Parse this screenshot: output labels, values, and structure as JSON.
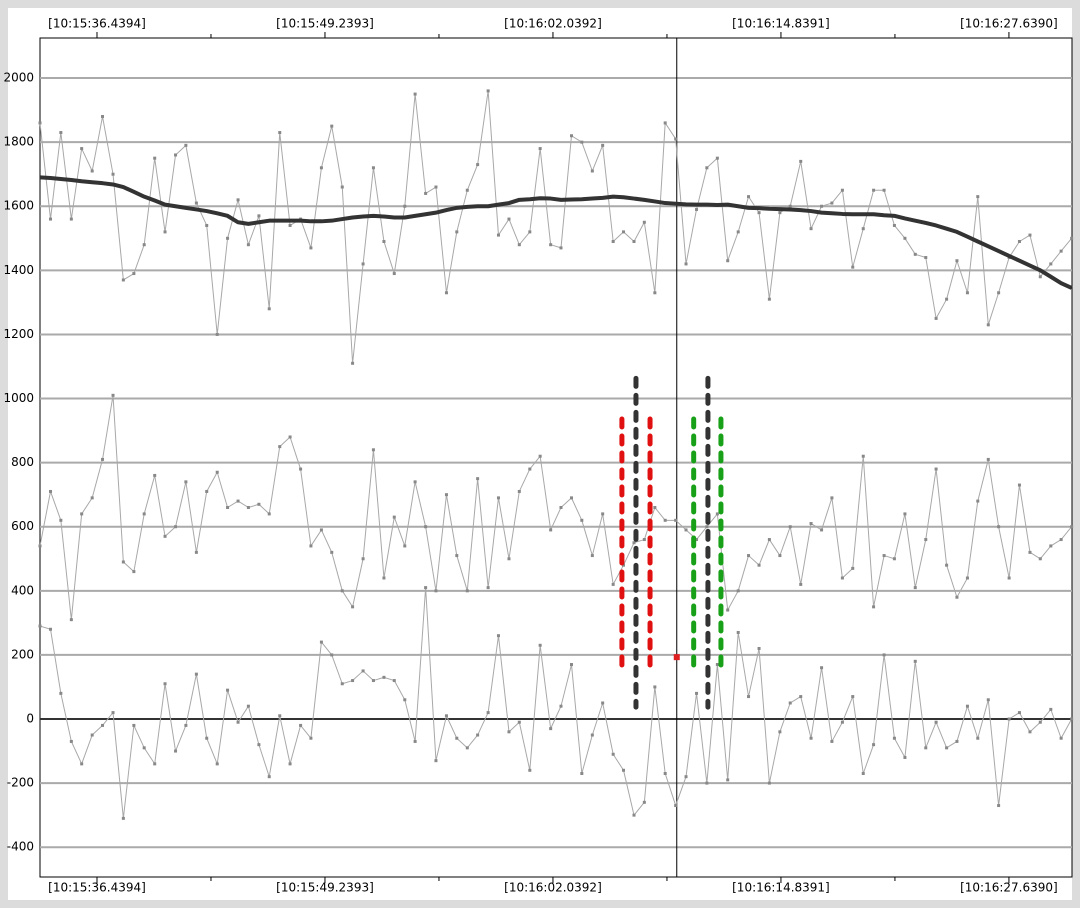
{
  "chart_data": {
    "type": "line",
    "xlim": [
      33.24,
      91.18
    ],
    "ylim": [
      -493,
      2125
    ],
    "xticks": [
      {
        "value": 36.4394,
        "label": "[10:15:36.4394]"
      },
      {
        "value": 49.2393,
        "label": "[10:15:49.2393]"
      },
      {
        "value": 62.0392,
        "label": "[10:16:02.0392]"
      },
      {
        "value": 74.8391,
        "label": "[10:16:14.8391]"
      },
      {
        "value": 87.639,
        "label": "[10:16:27.6390]"
      }
    ],
    "xminorticks": [
      42.8394,
      55.6393,
      68.4392,
      81.2391
    ],
    "yticks": [
      -400,
      -200,
      0,
      200,
      400,
      600,
      800,
      1000,
      1200,
      1400,
      1600,
      1800,
      2000
    ],
    "grid": true,
    "cursor_x": 68.99,
    "x": [
      33.24,
      33.83,
      34.41,
      35.0,
      35.58,
      36.17,
      36.75,
      37.34,
      37.92,
      38.51,
      39.09,
      39.68,
      40.26,
      40.85,
      41.43,
      42.02,
      42.6,
      43.19,
      43.77,
      44.36,
      44.94,
      45.53,
      46.11,
      46.7,
      47.28,
      47.87,
      48.45,
      49.04,
      49.62,
      50.21,
      50.79,
      51.38,
      51.96,
      52.55,
      53.13,
      53.72,
      54.3,
      54.89,
      55.47,
      56.06,
      56.64,
      57.23,
      57.81,
      58.4,
      58.98,
      59.57,
      60.15,
      60.74,
      61.32,
      61.91,
      62.49,
      63.08,
      63.66,
      64.25,
      64.83,
      65.42,
      66.0,
      66.59,
      67.17,
      67.76,
      68.34,
      68.93,
      69.51,
      70.1,
      70.68,
      71.27,
      71.85,
      72.44,
      73.02,
      73.61,
      74.19,
      74.78,
      75.36,
      75.95,
      76.53,
      77.12,
      77.7,
      78.29,
      78.87,
      79.46,
      80.04,
      80.63,
      81.21,
      81.8,
      82.38,
      82.97,
      83.55,
      84.14,
      84.72,
      85.31,
      85.89,
      86.48,
      87.06,
      87.65,
      88.23,
      88.82,
      89.4,
      89.99,
      90.57,
      91.16
    ],
    "series": [
      {
        "color": "#a8a8a8",
        "width": 1,
        "marker": true,
        "values": [
          1860,
          1560,
          1830,
          1560,
          1780,
          1710,
          1880,
          1700,
          1370,
          1390,
          1480,
          1750,
          1520,
          1760,
          1790,
          1610,
          1540,
          1200,
          1500,
          1620,
          1480,
          1570,
          1280,
          1830,
          1540,
          1560,
          1470,
          1720,
          1850,
          1660,
          1110,
          1420,
          1720,
          1490,
          1390,
          1600,
          1950,
          1640,
          1660,
          1330,
          1520,
          1650,
          1730,
          1960,
          1510,
          1560,
          1480,
          1520,
          1780,
          1480,
          1470,
          1820,
          1800,
          1710,
          1790,
          1490,
          1520,
          1490,
          1550,
          1330,
          1860,
          1810,
          1420,
          1590,
          1720,
          1750,
          1430,
          1520,
          1630,
          1580,
          1310,
          1580,
          1600,
          1740,
          1530,
          1600,
          1610,
          1650,
          1410,
          1530,
          1650,
          1650,
          1540,
          1500,
          1450,
          1440,
          1250,
          1310,
          1430,
          1330,
          1630,
          1230,
          1330,
          1440,
          1490,
          1510,
          1380,
          1420,
          1460,
          1500
        ]
      },
      {
        "color": "#a8a8a8",
        "width": 1,
        "marker": true,
        "values": [
          540,
          710,
          620,
          310,
          640,
          690,
          810,
          1010,
          490,
          460,
          640,
          760,
          570,
          600,
          740,
          520,
          710,
          770,
          660,
          680,
          660,
          670,
          640,
          850,
          880,
          780,
          540,
          590,
          520,
          400,
          350,
          500,
          840,
          440,
          630,
          540,
          740,
          600,
          400,
          700,
          510,
          400,
          750,
          410,
          690,
          500,
          710,
          780,
          820,
          590,
          660,
          690,
          620,
          510,
          640,
          420,
          480,
          550,
          560,
          660,
          620,
          620,
          590,
          560,
          600,
          640,
          340,
          400,
          510,
          480,
          560,
          510,
          600,
          420,
          610,
          590,
          690,
          440,
          470,
          820,
          350,
          510,
          500,
          640,
          410,
          560,
          780,
          480,
          380,
          440,
          680,
          810,
          600,
          440,
          730,
          520,
          500,
          540,
          560,
          600
        ]
      },
      {
        "color": "#a8a8a8",
        "width": 1,
        "marker": true,
        "values": [
          290,
          280,
          80,
          -70,
          -140,
          -50,
          -20,
          20,
          -310,
          -20,
          -90,
          -140,
          110,
          -100,
          -20,
          140,
          -60,
          -140,
          90,
          -10,
          40,
          -80,
          -180,
          10,
          -140,
          -20,
          -60,
          240,
          200,
          110,
          120,
          150,
          120,
          130,
          120,
          60,
          -70,
          410,
          -130,
          10,
          -60,
          -90,
          -50,
          20,
          260,
          -40,
          -10,
          -160,
          230,
          -30,
          40,
          170,
          -170,
          -50,
          50,
          -110,
          -160,
          -300,
          -260,
          100,
          -170,
          -270,
          -180,
          80,
          -200,
          170,
          -190,
          270,
          70,
          220,
          -200,
          -40,
          50,
          70,
          -60,
          160,
          -70,
          -10,
          70,
          -170,
          -80,
          200,
          -60,
          -120,
          180,
          -90,
          -10,
          -90,
          -70,
          40,
          -60,
          60,
          -270,
          0,
          20,
          -40,
          -10,
          30,
          -60,
          0
        ]
      },
      {
        "color": "#333333",
        "width": 4,
        "marker": false,
        "values": [
          1690,
          1688,
          1685,
          1682,
          1678,
          1675,
          1672,
          1668,
          1660,
          1645,
          1630,
          1618,
          1605,
          1600,
          1595,
          1590,
          1585,
          1578,
          1570,
          1550,
          1545,
          1550,
          1555,
          1555,
          1555,
          1555,
          1553,
          1553,
          1555,
          1560,
          1565,
          1568,
          1570,
          1568,
          1565,
          1565,
          1570,
          1575,
          1580,
          1588,
          1595,
          1598,
          1600,
          1600,
          1605,
          1610,
          1620,
          1622,
          1625,
          1624,
          1620,
          1621,
          1622,
          1624,
          1626,
          1630,
          1628,
          1624,
          1620,
          1615,
          1610,
          1608,
          1606,
          1605,
          1605,
          1604,
          1605,
          1600,
          1595,
          1594,
          1592,
          1591,
          1590,
          1588,
          1585,
          1580,
          1578,
          1576,
          1575,
          1575,
          1575,
          1572,
          1570,
          1562,
          1555,
          1548,
          1540,
          1530,
          1520,
          1505,
          1490,
          1475,
          1460,
          1445,
          1430,
          1415,
          1400,
          1380,
          1360,
          1345
        ]
      }
    ],
    "markers": [
      {
        "x": 65.91,
        "low": 143,
        "high": 936,
        "color": "#e01010"
      },
      {
        "x": 66.7,
        "low": 37,
        "high": 1063,
        "color": "#333333"
      },
      {
        "x": 67.49,
        "low": 143,
        "high": 936,
        "color": "#e01010"
      },
      {
        "x": 69.94,
        "low": 143,
        "high": 936,
        "color": "#18a018"
      },
      {
        "x": 70.74,
        "low": 37,
        "high": 1063,
        "color": "#333333"
      },
      {
        "x": 71.47,
        "low": 143,
        "high": 936,
        "color": "#18a018"
      }
    ],
    "point": {
      "x": 68.99,
      "y": 193,
      "color": "#e02020"
    }
  }
}
